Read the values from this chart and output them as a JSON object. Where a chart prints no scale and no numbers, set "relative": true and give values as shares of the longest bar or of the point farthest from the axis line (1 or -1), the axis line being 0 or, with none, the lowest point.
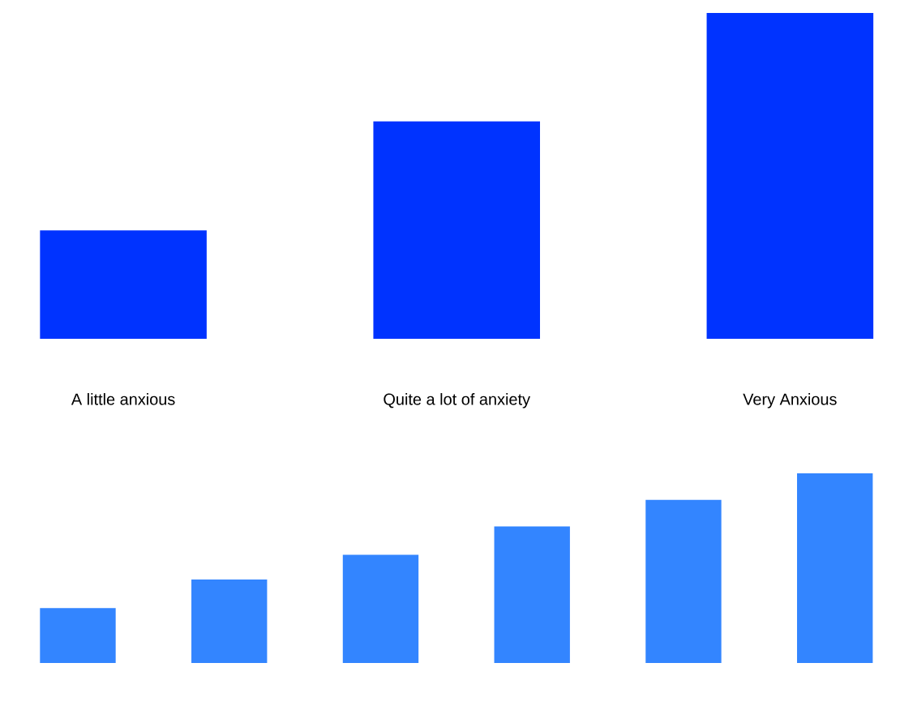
{
  "chart_data": [
    {
      "type": "bar",
      "relative": true,
      "categories": [
        "A little anxious",
        "Quite a lot of anxiety",
        "Very Anxious"
      ],
      "color": "#0033ff",
      "values": [
        0.333,
        0.667,
        1
      ]
    },
    {
      "type": "bar",
      "relative": true,
      "categories": [
        null,
        null,
        null,
        null,
        null,
        null
      ],
      "color": "#3385ff",
      "values": [
        0.29,
        0.44,
        0.57,
        0.72,
        0.86,
        1
      ]
    }
  ]
}
